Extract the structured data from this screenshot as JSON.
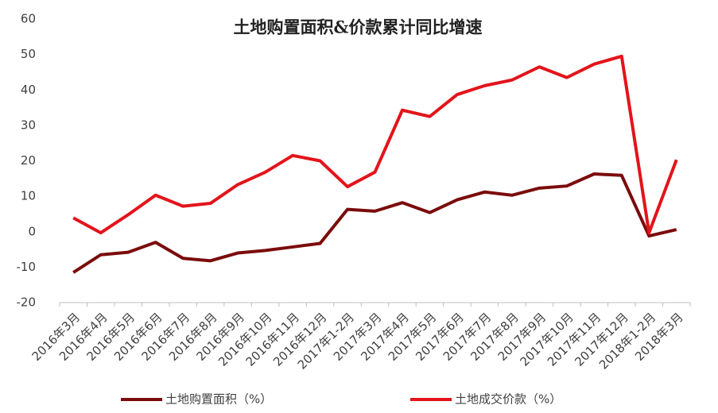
{
  "chart_data": {
    "type": "line",
    "title": "土地购置面积&价款累计同比增速",
    "categories": [
      "2016年3月",
      "2016年4月",
      "2016年5月",
      "2016年6月",
      "2016年7月",
      "2016年8月",
      "2016年9月",
      "2016年10月",
      "2016年11月",
      "2016年12月",
      "2017年1-2月",
      "2017年3月",
      "2017年4月",
      "2017年5月",
      "2017年6月",
      "2017年7月",
      "2017年8月",
      "2017年9月",
      "2017年10月",
      "2017年11月",
      "2017年12月",
      "2018年1-2月",
      "2018年3月"
    ],
    "series": [
      {
        "name": "土地购置面积（%）",
        "color": "#7b0c0c",
        "values": [
          -11.5,
          -6.5,
          -5.8,
          -3,
          -7.5,
          -8.2,
          -6,
          -5.3,
          -4.3,
          -3.3,
          6.3,
          5.8,
          8.2,
          5.4,
          9,
          11.2,
          10.3,
          12.3,
          12.9,
          16.3,
          15.9,
          -1.2,
          0.6
        ]
      },
      {
        "name": "土地成交价款（%）",
        "color": "#e3141b",
        "values": [
          3.9,
          -0.3,
          4.8,
          10.3,
          7.2,
          8,
          13.3,
          16.8,
          21.5,
          20,
          12.7,
          16.8,
          34.3,
          32.5,
          38.7,
          41.2,
          42.8,
          46.5,
          43.5,
          47.3,
          49.5,
          -0.3,
          20.3
        ]
      }
    ],
    "ylim": [
      -20,
      60
    ],
    "yticks": [
      -20,
      -10,
      0,
      10,
      20,
      30,
      40,
      50,
      60
    ],
    "grid": false
  }
}
